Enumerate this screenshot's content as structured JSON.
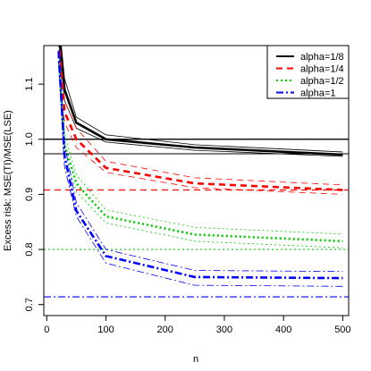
{
  "chart_data": {
    "type": "line",
    "title": "",
    "xlabel": "n",
    "ylabel": "Excess risk: MSE(TI)/MSE(LSE)",
    "xlim": [
      -5,
      510
    ],
    "ylim": [
      0.68,
      1.17
    ],
    "xticks": [
      0,
      100,
      200,
      300,
      400,
      500
    ],
    "yticks": [
      0.7,
      0.8,
      0.9,
      1.0,
      1.1
    ],
    "ytick_labels": [
      "0.7",
      "0.8",
      "0.9",
      "1.0",
      "1.1"
    ],
    "x": [
      20,
      30,
      50,
      100,
      250,
      500
    ],
    "legend_position": "top-right",
    "series": [
      {
        "name": "alpha=1/8",
        "color": "#000000",
        "line_style": "solid",
        "values": [
          1.2,
          1.09,
          1.03,
          1.0,
          0.985,
          0.972
        ],
        "upper": [
          1.22,
          1.11,
          1.04,
          1.008,
          0.99,
          0.977
        ],
        "lower": [
          1.18,
          1.07,
          1.02,
          0.995,
          0.98,
          0.969
        ],
        "limit": 1.0
      },
      {
        "name": "alpha=1/4",
        "color": "#ff0000",
        "line_style": "dashed",
        "values": [
          1.18,
          1.05,
          1.0,
          0.948,
          0.92,
          0.908
        ],
        "upper": [
          1.2,
          1.07,
          1.02,
          0.96,
          0.93,
          0.917
        ],
        "lower": [
          1.16,
          1.03,
          0.985,
          0.94,
          0.912,
          0.9
        ],
        "limit": 0.908
      },
      {
        "name": "alpha=1/2",
        "color": "#00cc00",
        "line_style": "dotted",
        "values": [
          1.15,
          0.99,
          0.92,
          0.86,
          0.827,
          0.815
        ],
        "upper": [
          1.17,
          1.01,
          0.935,
          0.872,
          0.84,
          0.828
        ],
        "lower": [
          1.13,
          0.97,
          0.905,
          0.848,
          0.815,
          0.803
        ],
        "limit": 0.8
      },
      {
        "name": "alpha=1",
        "color": "#0000ff",
        "line_style": "dotdash",
        "values": [
          1.16,
          0.97,
          0.87,
          0.788,
          0.75,
          0.748
        ],
        "upper": [
          1.18,
          0.99,
          0.885,
          0.8,
          0.762,
          0.76
        ],
        "lower": [
          1.14,
          0.95,
          0.86,
          0.775,
          0.735,
          0.733
        ],
        "limit": 0.714
      }
    ]
  }
}
